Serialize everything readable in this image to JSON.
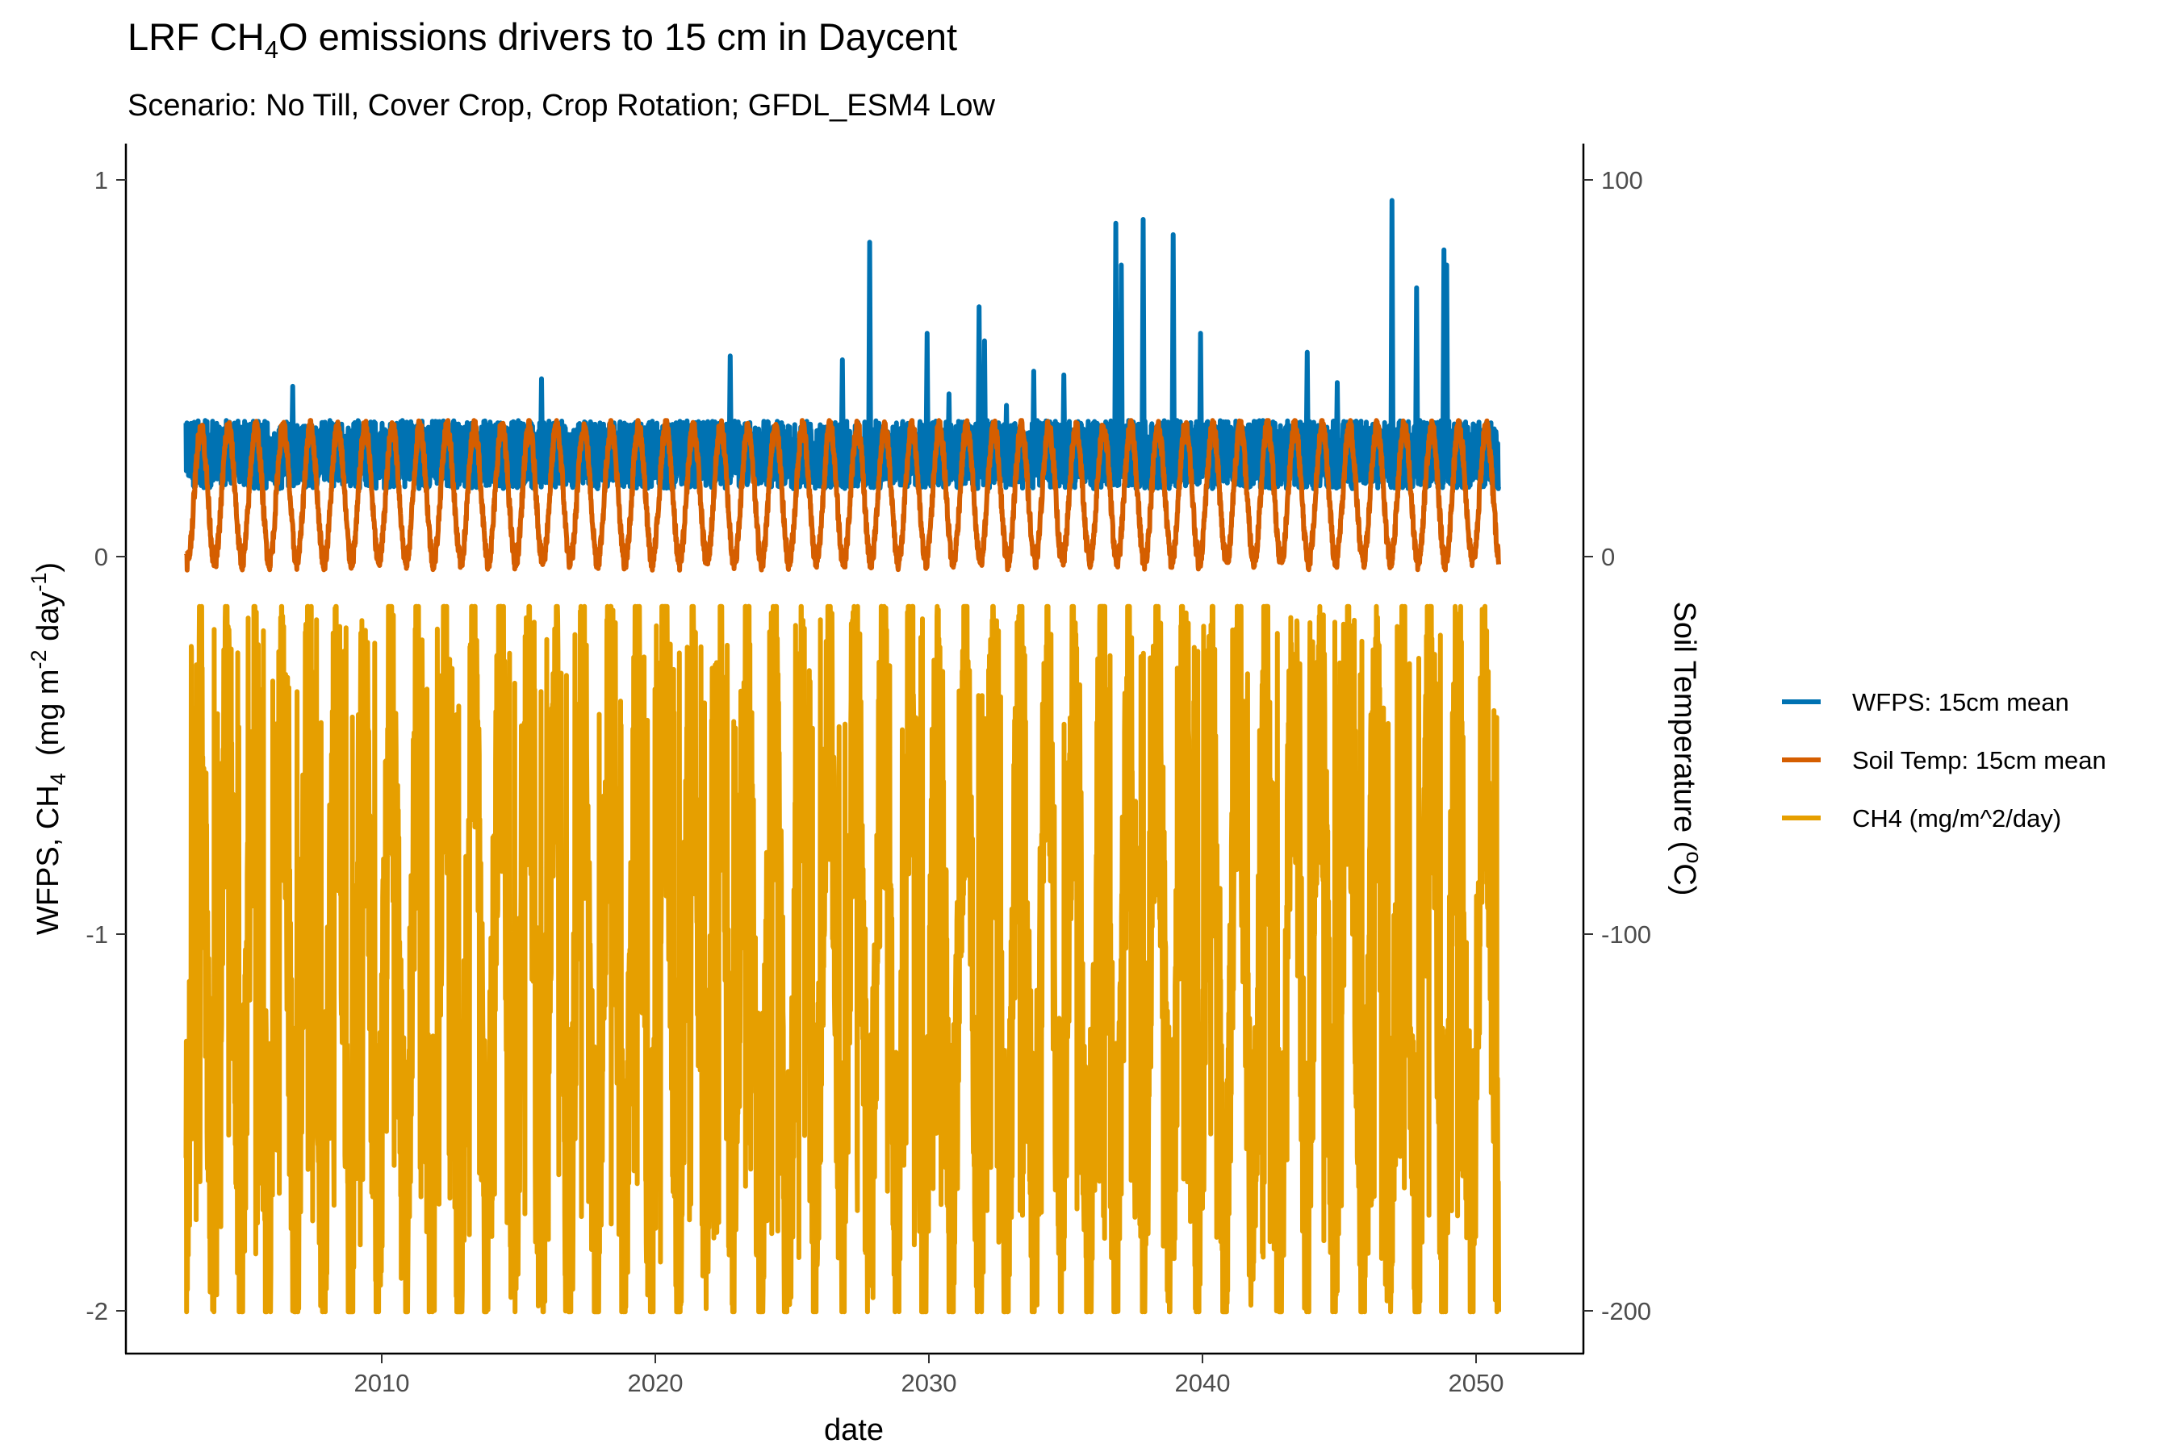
{
  "chart_data": {
    "type": "line",
    "title": {
      "pre": "LRF CH",
      "sub": "4",
      "post": "O emissions drivers to 15 cm in Daycent"
    },
    "subtitle": "Scenario: No Till, Cover Crop, Crop Rotation; GFDL_ESM4 Low",
    "xlabel": "date",
    "ylabel_left": {
      "p1": "WFPS, CH",
      "s1": "4",
      "p2": "  (mg m",
      "s2": "-2",
      "p3": " day",
      "s3": "-1",
      "p4": ")"
    },
    "ylabel_right": {
      "p1": "Soil Temperature (",
      "s1": "o",
      "p2": "C)"
    },
    "x_ticks": [
      "2010",
      "2020",
      "2030",
      "2040",
      "2050"
    ],
    "y_left_ticks": [
      "1",
      "0",
      "-1",
      "-2"
    ],
    "y_right_ticks": [
      "100",
      "0",
      "-100",
      "-200"
    ],
    "xlim": [
      2000.8,
      2054.1
    ],
    "ylim_left": [
      -2.09,
      1.1
    ],
    "ylim_right": [
      -209,
      110
    ],
    "right_axis_scale": "soil temperature = 100 x left-axis value",
    "grid": false,
    "legend_position": "right",
    "x_range": [
      2003,
      2051
    ],
    "series": [
      {
        "name": "WFPS: 15cm mean",
        "axis": "left",
        "color": "#0072B2",
        "range": [
          0.19,
          0.95
        ],
        "baseline_range": [
          0.19,
          0.37
        ],
        "peaks": [
          {
            "x": 2006.9,
            "y": 0.46
          },
          {
            "x": 2016.0,
            "y": 0.48
          },
          {
            "x": 2022.9,
            "y": 0.54
          },
          {
            "x": 2027.0,
            "y": 0.53
          },
          {
            "x": 2028.0,
            "y": 0.84
          },
          {
            "x": 2030.1,
            "y": 0.6
          },
          {
            "x": 2030.9,
            "y": 0.44
          },
          {
            "x": 2032.0,
            "y": 0.67
          },
          {
            "x": 2032.2,
            "y": 0.58
          },
          {
            "x": 2033.0,
            "y": 0.41
          },
          {
            "x": 2034.0,
            "y": 0.5
          },
          {
            "x": 2035.1,
            "y": 0.49
          },
          {
            "x": 2037.0,
            "y": 0.89
          },
          {
            "x": 2037.2,
            "y": 0.78
          },
          {
            "x": 2038.0,
            "y": 0.9
          },
          {
            "x": 2039.1,
            "y": 0.86
          },
          {
            "x": 2040.1,
            "y": 0.6
          },
          {
            "x": 2044.0,
            "y": 0.55
          },
          {
            "x": 2045.1,
            "y": 0.47
          },
          {
            "x": 2047.1,
            "y": 0.95
          },
          {
            "x": 2048.0,
            "y": 0.72
          },
          {
            "x": 2049.0,
            "y": 0.82
          },
          {
            "x": 2049.1,
            "y": 0.78
          }
        ]
      },
      {
        "name": "Soil Temp: 15cm mean",
        "axis": "right",
        "color": "#D55E00",
        "range": [
          -3,
          37
        ],
        "seasonal_max": 35,
        "seasonal_min": 0,
        "period_years": 1
      },
      {
        "name": "CH4 (mg/m^2/day)",
        "axis": "left",
        "color": "#E69F00",
        "range": [
          -1.98,
          -0.12
        ],
        "seasonal_max": -0.15,
        "seasonal_min": -1.85,
        "period_years": 1
      }
    ]
  }
}
